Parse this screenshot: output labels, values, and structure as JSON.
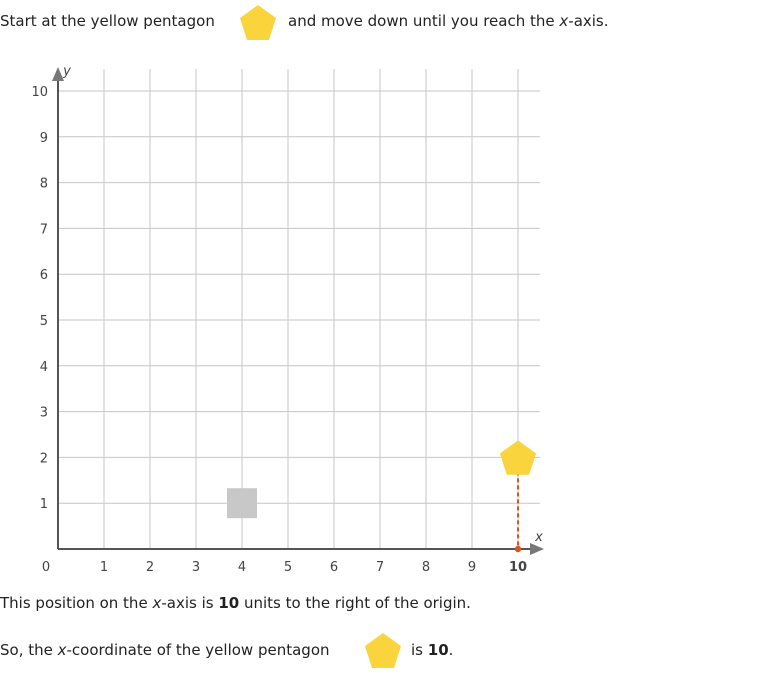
{
  "intro": {
    "text_before": "Start at the yellow pentagon",
    "text_after_1": "and move down until you reach the ",
    "text_after_var": "x",
    "text_after_2": "-axis."
  },
  "chart_data": {
    "type": "scatter",
    "xlabel": "x",
    "ylabel": "y",
    "xlim": [
      0,
      10
    ],
    "ylim": [
      0,
      10
    ],
    "grid": true,
    "x_ticks": [
      "0",
      "1",
      "2",
      "3",
      "4",
      "5",
      "6",
      "7",
      "8",
      "9",
      "10"
    ],
    "y_ticks": [
      "1",
      "2",
      "3",
      "4",
      "5",
      "6",
      "7",
      "8",
      "9",
      "10"
    ],
    "highlight_x_tick": "10",
    "shapes": [
      {
        "shape": "pentagon",
        "color": "yellow",
        "x": 10,
        "y": 2
      },
      {
        "shape": "square",
        "color": "gray",
        "x": 4,
        "y": 1
      }
    ],
    "projection": {
      "from": [
        10,
        2
      ],
      "to": [
        10,
        0
      ],
      "style": "dashed",
      "color": "#e0531c"
    },
    "colors": {
      "pentagon": "#f9d43c",
      "square": "#c8c8c8",
      "highlight": "#e0531c",
      "grid": "#c6c6c6",
      "axis": "#555555"
    }
  },
  "explanation": {
    "line1_a": "This position on the ",
    "line1_var": "x",
    "line1_b": "-axis is ",
    "line1_value": "10",
    "line1_c": " units to the right of the origin.",
    "line2_a": "So, the ",
    "line2_var": "x",
    "line2_b": "-coordinate of the yellow pentagon",
    "line2_c": "is ",
    "line2_value": "10",
    "line2_d": "."
  }
}
